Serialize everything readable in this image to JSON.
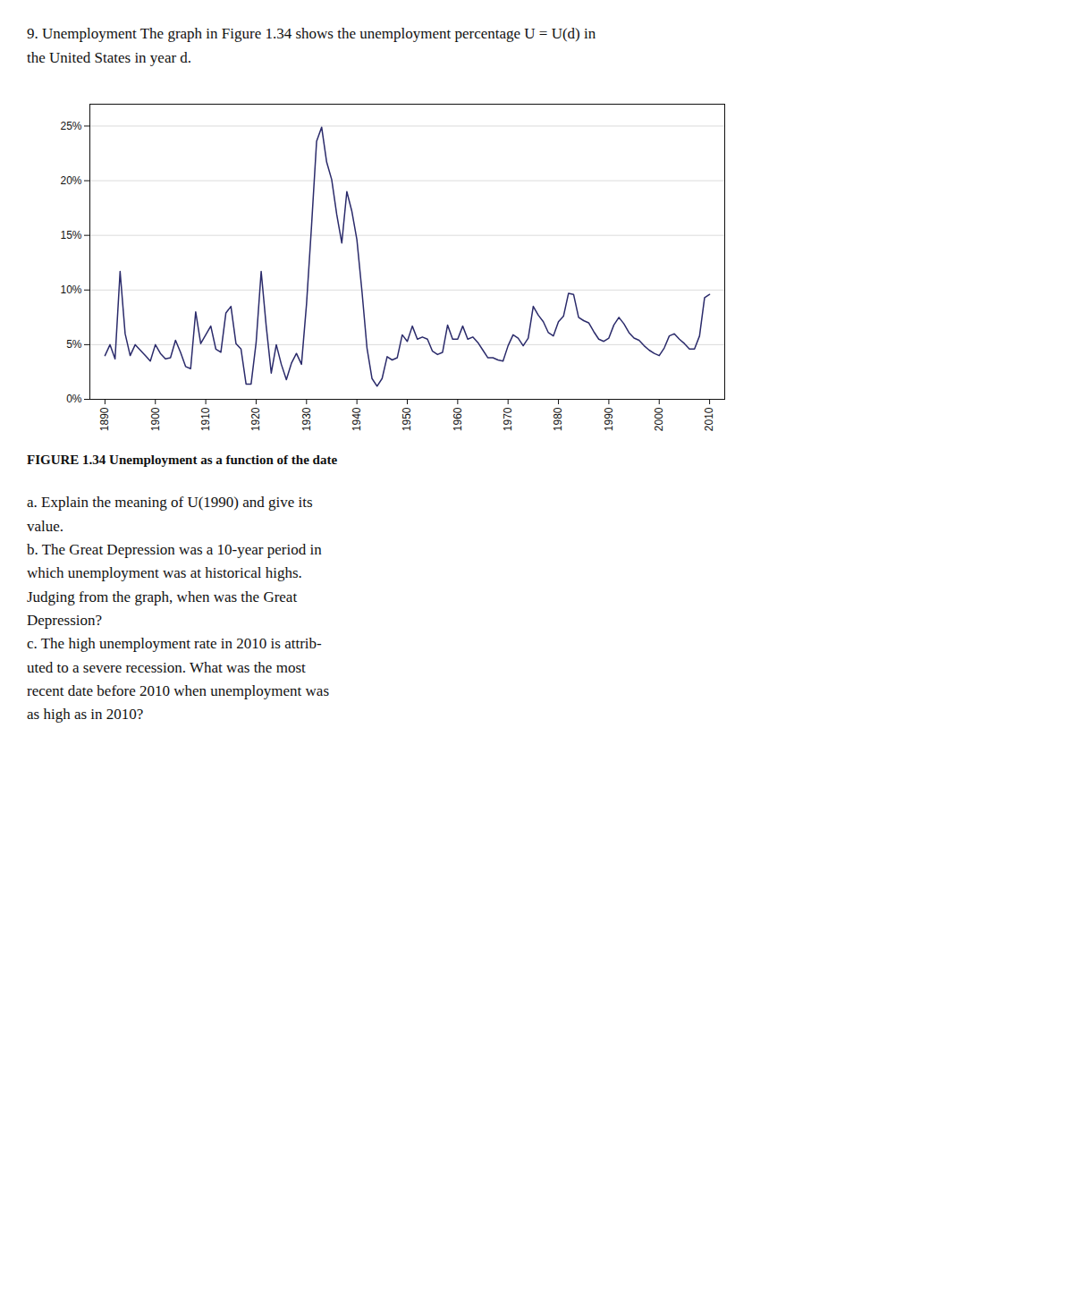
{
  "chart_data": {
    "type": "line",
    "title": "FIGURE 1.34  Unemployment as a function of the date",
    "subtitle": "9. Unemployment The graph in Figure 1.34 shows the unemployment percentage U = U(d) in the United States in year d.",
    "annotations": [
      "a. Explain the meaning of U(1990) and give its",
      "value.",
      "b. The Great Depression was a 10-year period in",
      "which unemployment was at historical highs.",
      "Judging from the graph, when was the Great",
      "Depression?",
      "c. The high unemployment rate in 2010 is attrib-",
      "uted to a severe recession. What was the most",
      "recent date before 2010 when unemployment was",
      "as high as in 2010?"
    ],
    "x": [
      1890,
      1891,
      1892,
      1893,
      1894,
      1895,
      1896,
      1897,
      1898,
      1899,
      1900,
      1901,
      1902,
      1903,
      1904,
      1905,
      1906,
      1907,
      1908,
      1909,
      1910,
      1911,
      1912,
      1913,
      1914,
      1915,
      1916,
      1917,
      1918,
      1919,
      1920,
      1921,
      1922,
      1923,
      1924,
      1925,
      1926,
      1927,
      1928,
      1929,
      1930,
      1931,
      1932,
      1933,
      1934,
      1935,
      1936,
      1937,
      1938,
      1939,
      1940,
      1941,
      1942,
      1943,
      1944,
      1945,
      1946,
      1947,
      1948,
      1949,
      1950,
      1951,
      1952,
      1953,
      1954,
      1955,
      1956,
      1957,
      1958,
      1959,
      1960,
      1961,
      1962,
      1963,
      1964,
      1965,
      1966,
      1967,
      1968,
      1969,
      1970,
      1971,
      1972,
      1973,
      1974,
      1975,
      1976,
      1977,
      1978,
      1979,
      1980,
      1981,
      1982,
      1983,
      1984,
      1985,
      1986,
      1987,
      1988,
      1989,
      1990,
      1991,
      1992,
      1993,
      1994,
      1995,
      1996,
      1997,
      1998,
      1999,
      2000,
      2001,
      2002,
      2003,
      2004,
      2005,
      2006,
      2007,
      2008,
      2009,
      2010
    ],
    "values": [
      4.0,
      5.0,
      3.7,
      11.7,
      6.0,
      4.0,
      5.0,
      4.5,
      4.0,
      3.5,
      5.0,
      4.2,
      3.7,
      3.8,
      5.4,
      4.3,
      3.0,
      2.8,
      8.0,
      5.1,
      5.9,
      6.7,
      4.6,
      4.3,
      7.9,
      8.5,
      5.1,
      4.6,
      1.4,
      1.4,
      5.2,
      11.7,
      6.7,
      2.4,
      5.0,
      3.2,
      1.8,
      3.3,
      4.2,
      3.2,
      8.7,
      15.9,
      23.6,
      24.9,
      21.7,
      20.1,
      16.9,
      14.3,
      19.0,
      17.2,
      14.6,
      9.9,
      4.7,
      1.9,
      1.2,
      1.9,
      3.9,
      3.6,
      3.8,
      5.9,
      5.3,
      6.7,
      5.5,
      5.7,
      5.5,
      4.4,
      4.1,
      4.3,
      6.8,
      5.5,
      5.5,
      6.7,
      5.5,
      5.7,
      5.2,
      4.5,
      3.8,
      3.8,
      3.6,
      3.5,
      4.9,
      5.9,
      5.6,
      4.9,
      5.6,
      8.5,
      7.7,
      7.1,
      6.1,
      5.8,
      7.1,
      7.6,
      9.7,
      9.6,
      7.5,
      7.2,
      7.0,
      6.2,
      5.5,
      5.3,
      5.6,
      6.8,
      7.5,
      6.9,
      6.1,
      5.6,
      5.4,
      4.9,
      4.5,
      4.2,
      4.0,
      4.7,
      5.8,
      6.0,
      5.5,
      5.1,
      4.6,
      4.6,
      5.8,
      9.3,
      9.6
    ],
    "color": "#2b2b6b",
    "xlim": [
      1887,
      2013
    ],
    "xticks": [
      1890,
      1900,
      1910,
      1920,
      1930,
      1940,
      1950,
      1960,
      1970,
      1980,
      1990,
      2000,
      2010
    ],
    "ylim": [
      0,
      27
    ],
    "yticks": [
      {
        "value": 0,
        "label": "0%"
      },
      {
        "value": 5,
        "label": "5%"
      },
      {
        "value": 10,
        "label": "10%"
      },
      {
        "value": 15,
        "label": "15%"
      },
      {
        "value": 20,
        "label": "20%"
      },
      {
        "value": 25,
        "label": "25%"
      }
    ],
    "grid": true
  }
}
